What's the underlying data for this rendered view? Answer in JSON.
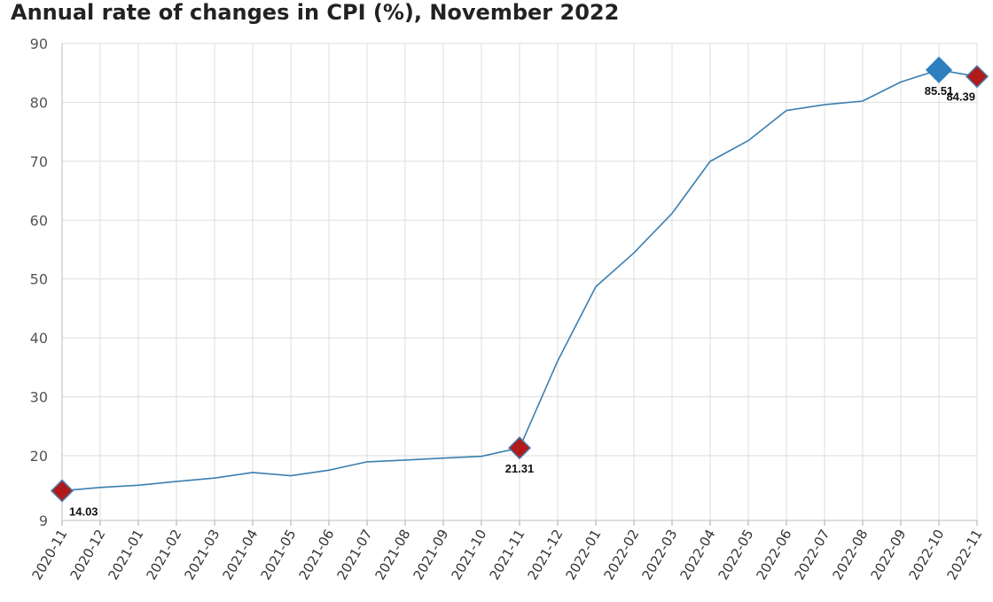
{
  "chart_data": {
    "type": "line",
    "title": "Annual rate of changes in CPI (%), November 2022",
    "xlabel": "",
    "ylabel": "",
    "x": [
      "2020-11",
      "2020-12",
      "2021-01",
      "2021-02",
      "2021-03",
      "2021-04",
      "2021-05",
      "2021-06",
      "2021-07",
      "2021-08",
      "2021-09",
      "2021-10",
      "2021-11",
      "2021-12",
      "2022-01",
      "2022-02",
      "2022-03",
      "2022-04",
      "2022-05",
      "2022-06",
      "2022-07",
      "2022-08",
      "2022-09",
      "2022-10",
      "2022-11"
    ],
    "series": [
      {
        "name": "",
        "color": "#3a7fb0",
        "values": [
          14.03,
          14.6,
          14.97,
          15.61,
          16.19,
          17.14,
          16.59,
          17.53,
          18.95,
          19.25,
          19.58,
          19.89,
          21.31,
          36.08,
          48.69,
          54.44,
          61.14,
          69.97,
          73.5,
          78.62,
          79.6,
          80.21,
          83.45,
          85.51,
          84.39
        ]
      }
    ],
    "yticks": [
      "9",
      "20",
      "30",
      "40",
      "50",
      "60",
      "70",
      "80",
      "90"
    ],
    "ylim": [
      9,
      90
    ],
    "grid": true,
    "legend": "none",
    "highlights": [
      {
        "index": 0,
        "label": "14.03",
        "color": "#b01a1a",
        "kind": "low"
      },
      {
        "index": 12,
        "label": "21.31",
        "color": "#b01a1a",
        "kind": "low"
      },
      {
        "index": 23,
        "label": "85.51",
        "color": "#2f7fbf",
        "kind": "high"
      },
      {
        "index": 24,
        "label": "84.39",
        "color": "#b01a1a",
        "kind": "low"
      }
    ]
  }
}
